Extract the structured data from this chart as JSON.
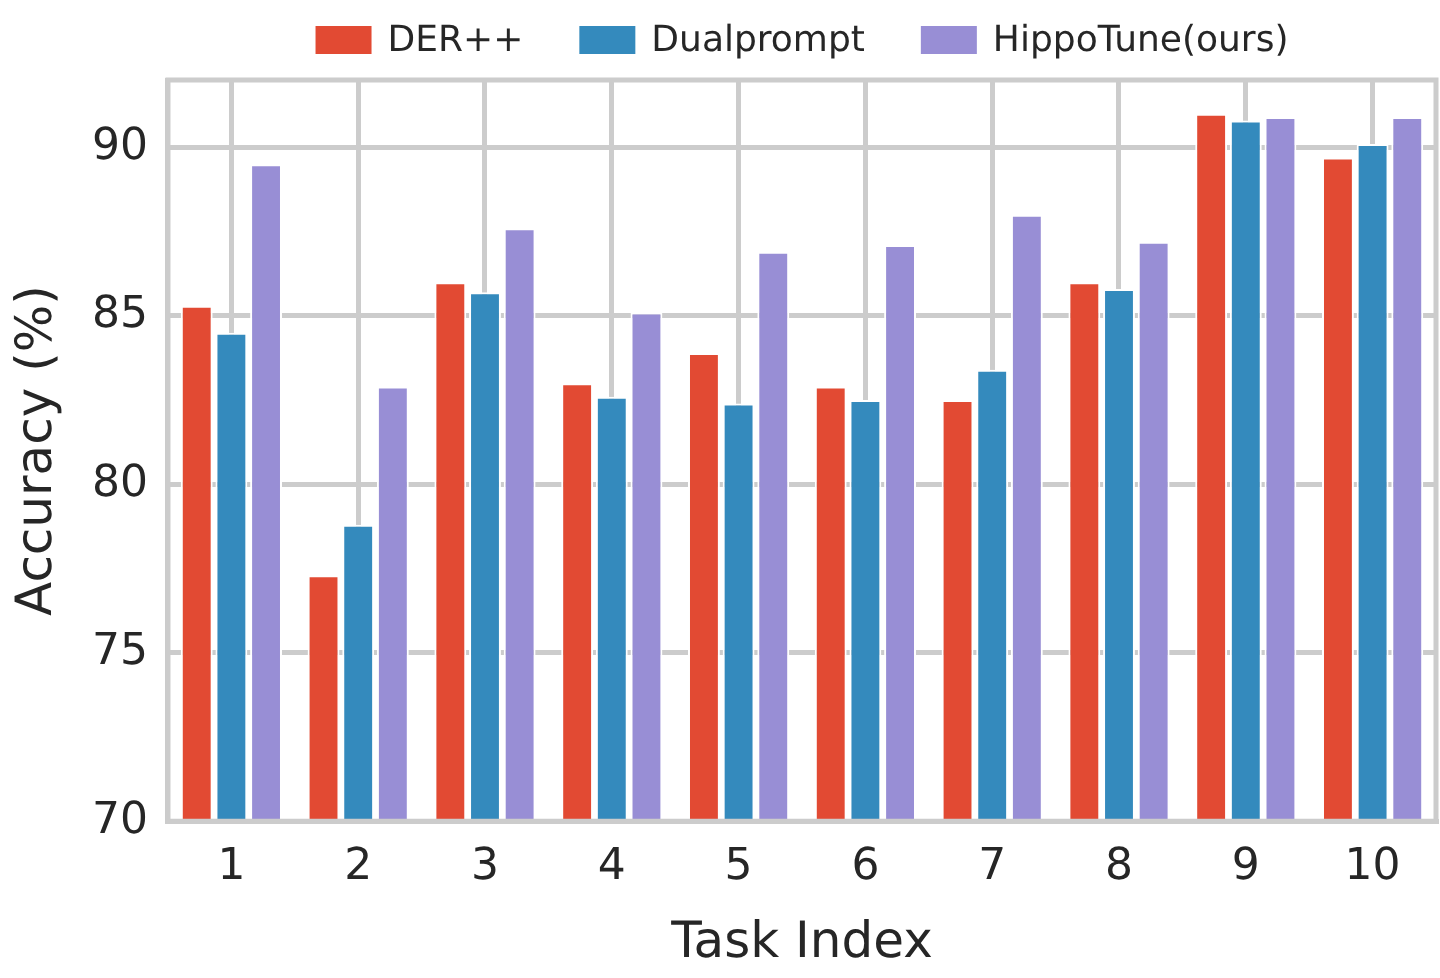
{
  "chart_data": {
    "type": "bar",
    "xlabel": "Task Index",
    "ylabel": "Accuracy (%)",
    "categories": [
      "1",
      "2",
      "3",
      "4",
      "5",
      "6",
      "7",
      "8",
      "9",
      "10"
    ],
    "series": [
      {
        "name": "DER++",
        "color": "#e24a33",
        "values": [
          85.3,
          77.3,
          86.0,
          83.0,
          83.9,
          82.9,
          82.5,
          86.0,
          91.0,
          89.7
        ]
      },
      {
        "name": "Dualprompt",
        "color": "#348abd",
        "values": [
          84.5,
          78.8,
          85.7,
          82.6,
          82.4,
          82.5,
          83.4,
          85.8,
          90.8,
          90.1
        ]
      },
      {
        "name": "HippoTune(ours)",
        "color": "#988ed5",
        "values": [
          89.5,
          82.9,
          87.6,
          85.1,
          86.9,
          87.1,
          88.0,
          87.2,
          90.9,
          90.9
        ]
      }
    ],
    "ylim": [
      70,
      92
    ],
    "yticks": [
      70,
      75,
      80,
      85,
      90
    ],
    "grid": true,
    "legend": "top"
  }
}
